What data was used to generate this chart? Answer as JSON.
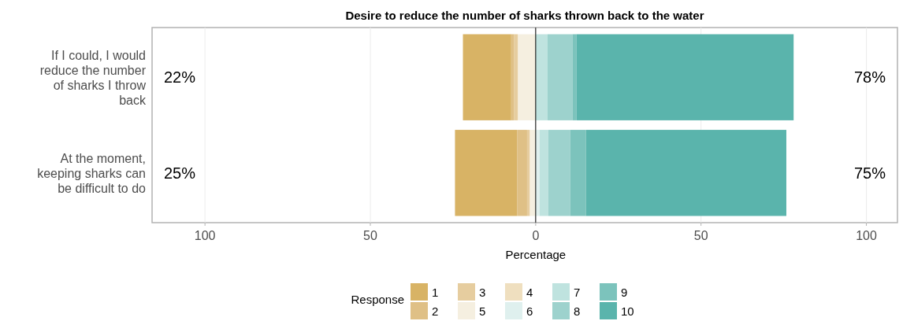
{
  "chart_data": {
    "type": "bar",
    "orientation": "horizontal",
    "stacked": true,
    "title": "Desire to reduce the number of sharks thrown back to the water",
    "xlabel": "Percentage",
    "legend_title": "Response",
    "legend": "bottom",
    "grid": "x",
    "categories": [
      "If I could, I would reduce the number of sharks I throw back",
      "At the moment, keeping sharks can be difficult to do"
    ],
    "xlim": [
      -116,
      109.4
    ],
    "xticks": [
      {
        "value": -100,
        "label": "100"
      },
      {
        "value": -50,
        "label": "50"
      },
      0,
      50,
      100
    ],
    "ref_lines": [
      {
        "axis": "x",
        "value": 0,
        "color": "#000000"
      }
    ],
    "series": [
      {
        "name": "5",
        "color": "#f5efe0",
        "values": [
          -5.4,
          -1.8
        ]
      },
      {
        "name": "4",
        "color": "#efdfbf",
        "values": [
          0,
          0
        ]
      },
      {
        "name": "3",
        "color": "#e6cd9f",
        "values": [
          -1.1,
          -0.8
        ]
      },
      {
        "name": "2",
        "color": "#dfc086",
        "values": [
          -0.9,
          -3.0
        ]
      },
      {
        "name": "1",
        "color": "#d8b365",
        "values": [
          -14.6,
          -18.8
        ]
      },
      {
        "name": "6",
        "color": "#dff0ee",
        "values": [
          0,
          1.2
        ]
      },
      {
        "name": "7",
        "color": "#bfe3df",
        "values": [
          3.6,
          2.6
        ]
      },
      {
        "name": "8",
        "color": "#9dd2cd",
        "values": [
          7.5,
          6.6
        ]
      },
      {
        "name": "9",
        "color": "#7cc3bc",
        "values": [
          1.2,
          4.8
        ]
      },
      {
        "name": "10",
        "color": "#5ab4ac",
        "values": [
          65.7,
          60.6
        ]
      }
    ],
    "annotations": [
      "22%",
      "78%",
      "25%",
      "75%"
    ]
  }
}
